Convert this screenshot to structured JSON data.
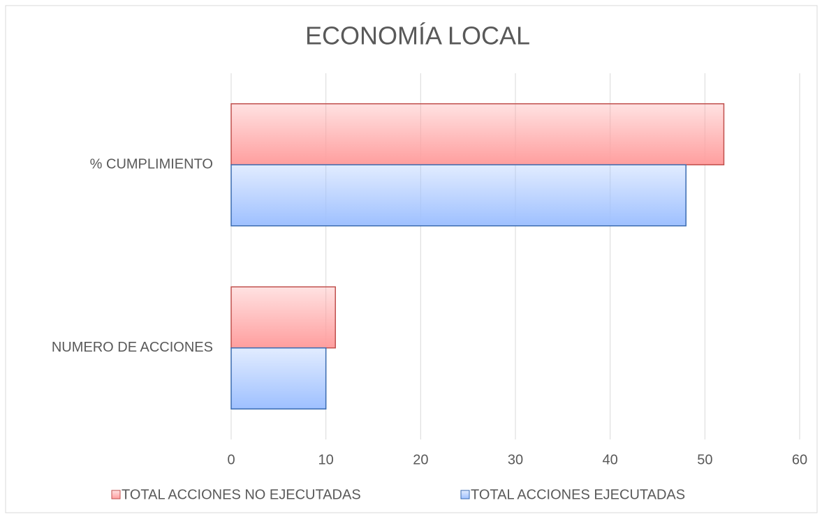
{
  "chart_data": {
    "type": "hbar",
    "title": "ECONOMÍA LOCAL",
    "categories": [
      "NUMERO DE ACCIONES",
      "% CUMPLIMIENTO"
    ],
    "series": [
      {
        "name": "TOTAL ACCIONES NO EJECUTADAS",
        "color": "#ff9e9e",
        "edge": "#c0504d",
        "values": [
          11,
          52
        ]
      },
      {
        "name": "TOTAL ACCIONES EJECUTADAS",
        "color": "#9ec0ff",
        "edge": "#3a6bb0",
        "values": [
          10,
          48
        ]
      }
    ],
    "xlim": [
      0,
      60
    ],
    "xticks": [
      0,
      10,
      20,
      30,
      40,
      50,
      60
    ],
    "grid": true,
    "legend": "bottom"
  }
}
